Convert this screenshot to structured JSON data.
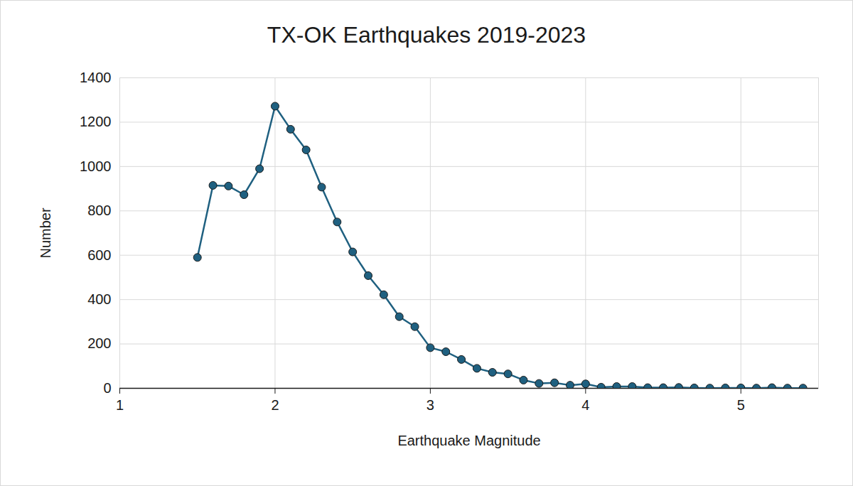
{
  "chart_data": {
    "type": "line",
    "title": "TX-OK Earthquakes 2019-2023",
    "x_label": "Earthquake Magnitude",
    "y_label": "Number",
    "x": [
      1.5,
      1.6,
      1.7,
      1.8,
      1.9,
      2.0,
      2.1,
      2.2,
      2.3,
      2.4,
      2.5,
      2.6,
      2.7,
      2.8,
      2.9,
      3.0,
      3.1,
      3.2,
      3.3,
      3.4,
      3.5,
      3.6,
      3.7,
      3.8,
      3.9,
      4.0,
      4.1,
      4.2,
      4.3,
      4.4,
      4.5,
      4.6,
      4.7,
      4.8,
      4.9,
      5.0,
      5.1,
      5.2,
      5.3,
      5.4
    ],
    "values": [
      590,
      915,
      912,
      873,
      990,
      1272,
      1168,
      1075,
      907,
      750,
      615,
      508,
      422,
      323,
      278,
      183,
      165,
      130,
      90,
      72,
      65,
      37,
      22,
      25,
      14,
      20,
      5,
      8,
      8,
      3,
      3,
      4,
      2,
      1,
      2,
      2,
      1,
      3,
      1,
      1
    ],
    "color": "#1f6080",
    "marker": "circle",
    "xlim": [
      1,
      5.5
    ],
    "xticks": [
      1,
      2,
      3,
      4,
      5
    ],
    "ylim": [
      0,
      1400
    ],
    "yticks": [
      0,
      200,
      400,
      600,
      800,
      1000,
      1200,
      1400
    ],
    "grid": true
  }
}
